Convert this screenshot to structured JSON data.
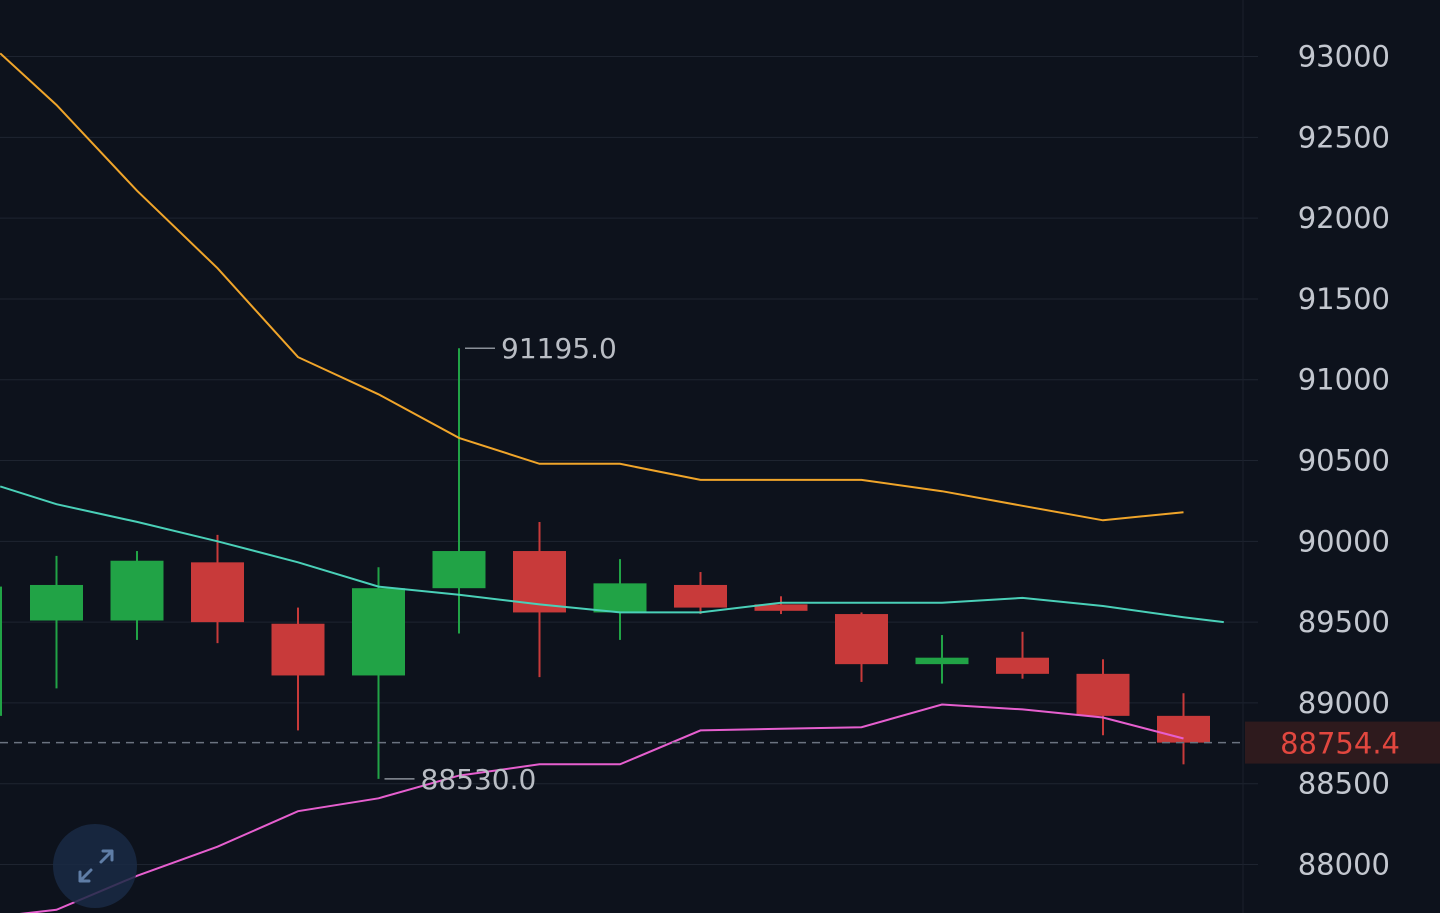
{
  "colors": {
    "background": "#0d121c",
    "grid": "#1e2430",
    "up": "#21a346",
    "down": "#c83a3a",
    "ma_orange": "#f0a52a",
    "ma_teal": "#4ad0b8",
    "ma_pink": "#e65fcf",
    "last_price": "#e2473f"
  },
  "chart_data": {
    "type": "candlestick",
    "ylim": [
      87700,
      93350
    ],
    "y_ticks": [
      "93000",
      "92500",
      "92000",
      "91500",
      "91000",
      "90500",
      "90000",
      "89500",
      "89000",
      "88500",
      "88000"
    ],
    "x": [
      0,
      1,
      2,
      3,
      4,
      5,
      6,
      7,
      8,
      9,
      10,
      11,
      12,
      13,
      14,
      15
    ],
    "candles": [
      {
        "open": 89510,
        "high": 89910,
        "low": 89090,
        "close": 89730
      },
      {
        "open": 89510,
        "high": 89940,
        "low": 89390,
        "close": 89880
      },
      {
        "open": 89870,
        "high": 90040,
        "low": 89370,
        "close": 89500
      },
      {
        "open": 89490,
        "high": 89590,
        "low": 88830,
        "close": 89170
      },
      {
        "open": 89170,
        "high": 89840,
        "low": 88530,
        "close": 89710
      },
      {
        "open": 89710,
        "high": 91195,
        "low": 89430,
        "close": 89940
      },
      {
        "open": 89940,
        "high": 90120,
        "low": 89160,
        "close": 89560
      },
      {
        "open": 89560,
        "high": 89890,
        "low": 89390,
        "close": 89740
      },
      {
        "open": 89730,
        "high": 89810,
        "low": 89550,
        "close": 89590
      },
      {
        "open": 89610,
        "high": 89660,
        "low": 89550,
        "close": 89570
      },
      {
        "open": 89550,
        "high": 89560,
        "low": 89130,
        "close": 89240
      },
      {
        "open": 89240,
        "high": 89420,
        "low": 89120,
        "close": 89280
      },
      {
        "open": 89280,
        "high": 89440,
        "low": 89150,
        "close": 89180
      },
      {
        "open": 89180,
        "high": 89270,
        "low": 88800,
        "close": 88920
      },
      {
        "open": 88920,
        "high": 89060,
        "low": 88620,
        "close": 88754.4
      }
    ],
    "series": [
      {
        "color": "#f0a52a",
        "points": [
          [
            -0.7,
            93020
          ],
          [
            0,
            92700
          ],
          [
            1,
            92170
          ],
          [
            2,
            91690
          ],
          [
            3,
            91140
          ],
          [
            4,
            90910
          ],
          [
            5,
            90640
          ],
          [
            6,
            90480
          ],
          [
            7,
            90480
          ],
          [
            8,
            90380
          ],
          [
            9,
            90380
          ],
          [
            10,
            90380
          ],
          [
            11,
            90310
          ],
          [
            12,
            90220
          ],
          [
            13,
            90130
          ],
          [
            14,
            90180
          ]
        ]
      },
      {
        "color": "#4ad0b8",
        "points": [
          [
            -0.7,
            90340
          ],
          [
            0,
            90230
          ],
          [
            1,
            90120
          ],
          [
            2,
            90000
          ],
          [
            3,
            89870
          ],
          [
            4,
            89720
          ],
          [
            5,
            89670
          ],
          [
            6,
            89610
          ],
          [
            7,
            89560
          ],
          [
            8,
            89560
          ],
          [
            9,
            89620
          ],
          [
            10,
            89620
          ],
          [
            11,
            89620
          ],
          [
            12,
            89650
          ],
          [
            13,
            89600
          ],
          [
            14,
            89530
          ],
          [
            14.5,
            89500
          ]
        ]
      },
      {
        "color": "#e65fcf",
        "points": [
          [
            -0.7,
            87680
          ],
          [
            0,
            87720
          ],
          [
            1,
            87930
          ],
          [
            2,
            88110
          ],
          [
            3,
            88330
          ],
          [
            4,
            88410
          ],
          [
            5,
            88550
          ],
          [
            6,
            88620
          ],
          [
            7,
            88620
          ],
          [
            8,
            88830
          ],
          [
            9,
            88840
          ],
          [
            10,
            88850
          ],
          [
            11,
            88990
          ],
          [
            12,
            88960
          ],
          [
            13,
            88910
          ],
          [
            14,
            88780
          ]
        ]
      }
    ],
    "annotations": [
      {
        "label": "91195.0",
        "candle": 5,
        "value": 91195
      },
      {
        "label": "88530.0",
        "candle": 4,
        "value": 88530
      }
    ],
    "last_price": {
      "value": 88754.4,
      "label": "88754.4"
    }
  }
}
